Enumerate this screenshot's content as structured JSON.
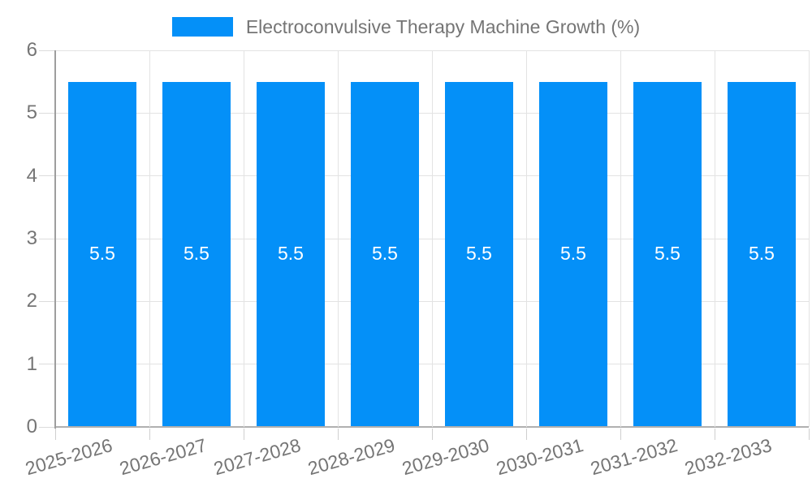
{
  "legend": {
    "position": "top"
  },
  "chart_data": {
    "type": "bar",
    "title": "Electroconvulsive Therapy Machine Growth (%)",
    "categories": [
      "2025-2026",
      "2026-2027",
      "2027-2028",
      "2028-2029",
      "2029-2030",
      "2030-2031",
      "2031-2032",
      "2032-2033"
    ],
    "series": [
      {
        "name": "Electroconvulsive Therapy Machine Growth (%)",
        "values": [
          5.5,
          5.5,
          5.5,
          5.5,
          5.5,
          5.5,
          5.5,
          5.5
        ]
      }
    ],
    "data_labels": [
      "5.5",
      "5.5",
      "5.5",
      "5.5",
      "5.5",
      "5.5",
      "5.5",
      "5.5"
    ],
    "xlabel": "",
    "ylabel": "",
    "ylim": [
      0,
      6
    ],
    "y_ticks": [
      0,
      1,
      2,
      3,
      4,
      5,
      6
    ],
    "grid": true,
    "legend_position": "top",
    "colors": {
      "bar": "#0490f8",
      "grid": "#e3e3e3",
      "axis_y": "#9e9e9e",
      "axis_x": "#b0b0b0",
      "tick": "#cfcfcf",
      "text": "#757575",
      "bar_label": "#ffffff"
    }
  }
}
